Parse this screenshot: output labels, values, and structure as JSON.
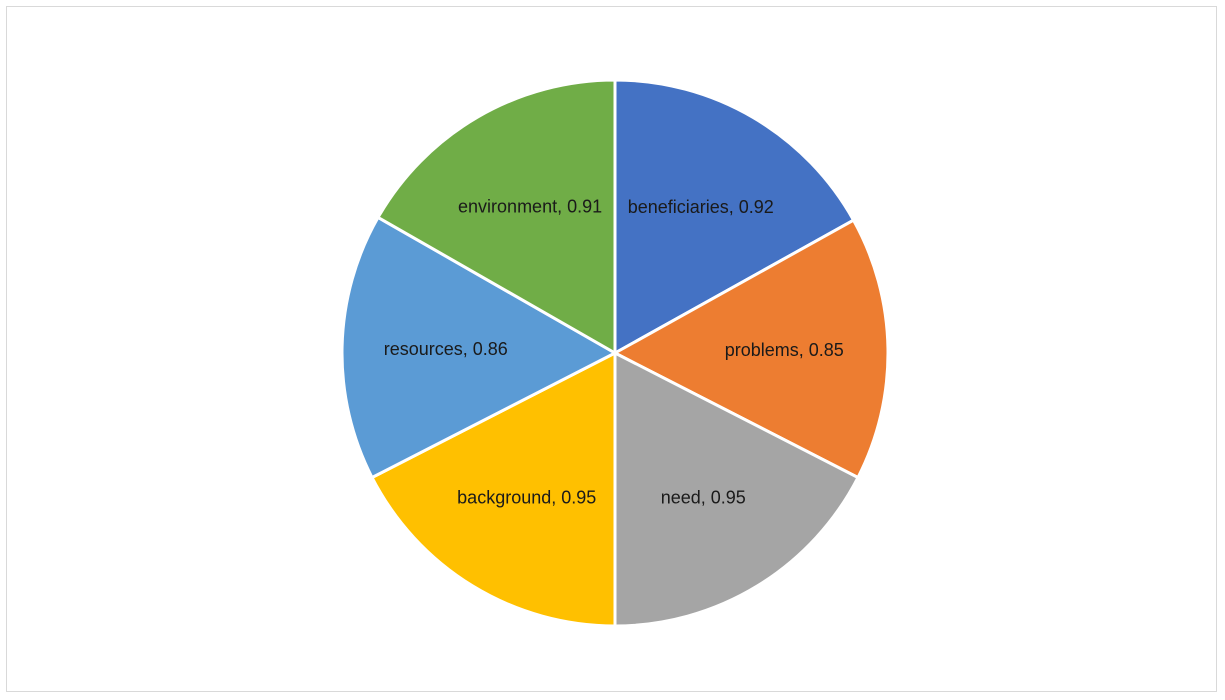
{
  "chart_data": {
    "type": "pie",
    "title": "",
    "legend": "none",
    "slices": [
      {
        "label": "beneficiaries",
        "value": 0.92,
        "display": "beneficiaries, 0.92",
        "color": "#4472C4"
      },
      {
        "label": "problems",
        "value": 0.85,
        "display": "problems, 0.85",
        "color": "#ED7D31"
      },
      {
        "label": "need",
        "value": 0.95,
        "display": "need, 0.95",
        "color": "#A5A5A5"
      },
      {
        "label": "background",
        "value": 0.95,
        "display": "background, 0.95",
        "color": "#FFC000"
      },
      {
        "label": "resources",
        "value": 0.86,
        "display": "resources, 0.86",
        "color": "#5B9BD5"
      },
      {
        "label": "environment",
        "value": 0.91,
        "display": "environment, 0.91",
        "color": "#70AD47"
      }
    ]
  }
}
